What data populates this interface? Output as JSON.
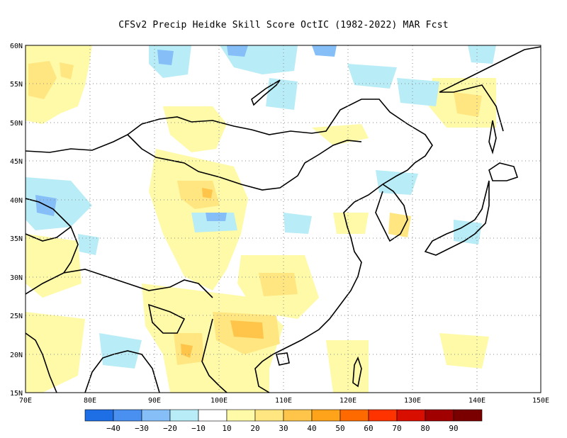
{
  "title": "CFSv2 Precip Heidke Skill Score OctIC (1982-2022) MAR Fcst",
  "map": {
    "lon_range": [
      70,
      150
    ],
    "lat_range": [
      15,
      60
    ],
    "lat_ticks": [
      "15N",
      "20N",
      "25N",
      "30N",
      "35N",
      "40N",
      "45N",
      "50N",
      "55N",
      "60N"
    ],
    "lon_ticks": [
      "70E",
      "80E",
      "90E",
      "100E",
      "110E",
      "120E",
      "130E",
      "140E",
      "150E"
    ],
    "grid": "dotted"
  },
  "colorbar": {
    "labels": [
      "−40",
      "−30",
      "−20",
      "−10",
      "10",
      "20",
      "30",
      "40",
      "50",
      "60",
      "70",
      "80",
      "90"
    ],
    "colors": [
      "#1e6ee6",
      "#4a90f0",
      "#86bff8",
      "#b8ecf6",
      "#ffffff",
      "#fffaa8",
      "#ffe680",
      "#ffc54a",
      "#ffa31a",
      "#ff6a00",
      "#ff3300",
      "#d80e00",
      "#a00000",
      "#7a0000"
    ]
  }
}
